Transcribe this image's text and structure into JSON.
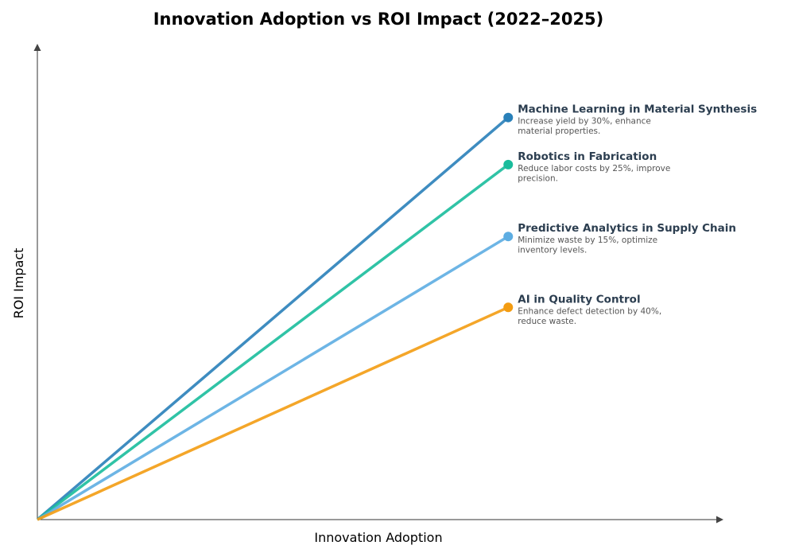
{
  "chart_data": {
    "type": "line",
    "title": "Innovation Adoption vs ROI Impact (2022–2025)",
    "xlabel": "Innovation Adoption",
    "ylabel": "ROI Impact",
    "xlim": [
      0,
      10.2
    ],
    "ylim": [
      0,
      10
    ],
    "grid": false,
    "ticks": false,
    "series": [
      {
        "name": "Machine Learning in Material Synthesis",
        "description": [
          "Increase yield by 30%, enhance",
          "material properties."
        ],
        "color": "#2980b9",
        "x": [
          0,
          7
        ],
        "y": [
          0,
          8.45
        ]
      },
      {
        "name": "Robotics in Fabrication",
        "description": [
          "Reduce labor costs by 25%, improve",
          "precision."
        ],
        "color": "#1abc9c",
        "x": [
          0,
          7
        ],
        "y": [
          0,
          7.46
        ]
      },
      {
        "name": "Predictive Analytics in Supply Chain",
        "description": [
          "Minimize waste by 15%, optimize",
          "inventory levels."
        ],
        "color": "#5dade2",
        "x": [
          0,
          7
        ],
        "y": [
          0,
          5.95
        ]
      },
      {
        "name": "AI in Quality Control",
        "description": [
          "Enhance defect detection by 40%,",
          "reduce waste."
        ],
        "color": "#f39c12",
        "x": [
          0,
          7
        ],
        "y": [
          0,
          4.46
        ]
      }
    ]
  }
}
